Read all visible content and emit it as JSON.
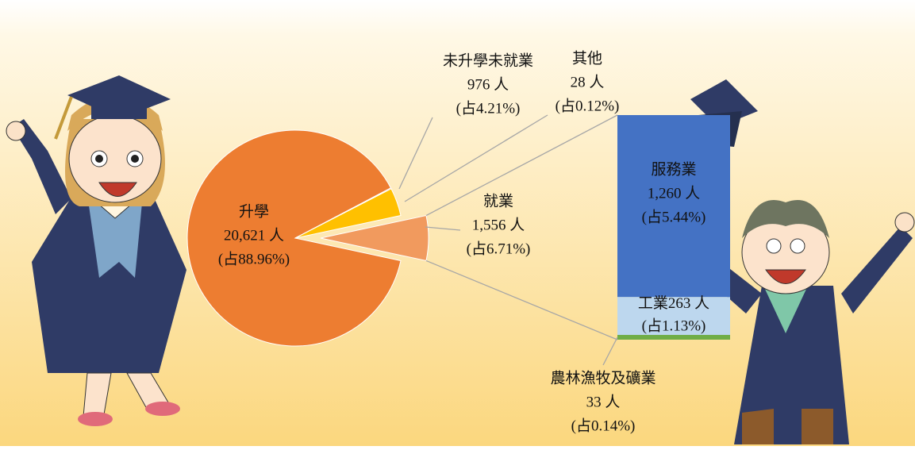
{
  "chart_data": [
    {
      "type": "pie",
      "categories": [
        "升學",
        "就業",
        "未升學未就業",
        "其他"
      ],
      "values": [
        20621,
        1556,
        976,
        28
      ],
      "value_labels": [
        "20,621 人",
        "1,556 人",
        "976 人",
        "28 人"
      ],
      "percents": [
        88.96,
        6.71,
        4.21,
        0.12
      ],
      "percent_labels": [
        "(占88.96%)",
        "(占6.71%)",
        "(占4.21%)",
        "(占0.12%)"
      ],
      "colors": [
        "#ed7d31",
        "#f19a5e",
        "#ffc000",
        "#c00000"
      ],
      "exploded": [
        false,
        true,
        false,
        false
      ]
    },
    {
      "type": "stacked-bar",
      "categories": [
        "服務業",
        "工業",
        "農林漁牧及礦業"
      ],
      "values": [
        1260,
        263,
        33
      ],
      "value_labels": [
        "1,260 人",
        "263 人",
        "33 人"
      ],
      "percents": [
        5.44,
        1.13,
        0.14
      ],
      "percent_labels": [
        "(占5.44%)",
        "(占1.13%)",
        "(占0.14%)"
      ],
      "colors": [
        "#4472c4",
        "#bdd7ee",
        "#70ad47"
      ]
    }
  ]
}
